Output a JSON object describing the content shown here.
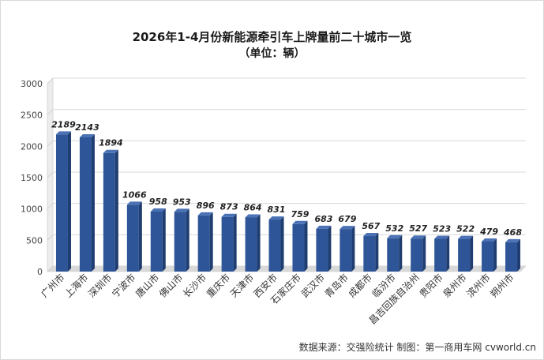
{
  "chart_data": {
    "type": "bar",
    "title": "2026年1-4月份新能源牵引车上牌量前二十城市一览",
    "subtitle": "（单位：辆）",
    "categories": [
      "广州市",
      "上海市",
      "深圳市",
      "宁波市",
      "唐山市",
      "佛山市",
      "长沙市",
      "重庆市",
      "天津市",
      "西安市",
      "石家庄市",
      "武汉市",
      "青岛市",
      "成都市",
      "临汾市",
      "昌吉回族自治州",
      "贵阳市",
      "泉州市",
      "滨州市",
      "朔州市"
    ],
    "values": [
      2189,
      2143,
      1894,
      1066,
      958,
      953,
      896,
      873,
      864,
      831,
      759,
      683,
      679,
      567,
      532,
      527,
      523,
      522,
      479,
      468
    ],
    "ylim": [
      0,
      3000
    ],
    "yticks": [
      0,
      500,
      1000,
      1500,
      2000,
      2500,
      3000
    ],
    "grid": true,
    "bar_color": "#2e5597",
    "xlabel": "",
    "ylabel": ""
  },
  "source_note": "数据来源：交强险统计 制图：第一商用车网 cvworld.cn"
}
